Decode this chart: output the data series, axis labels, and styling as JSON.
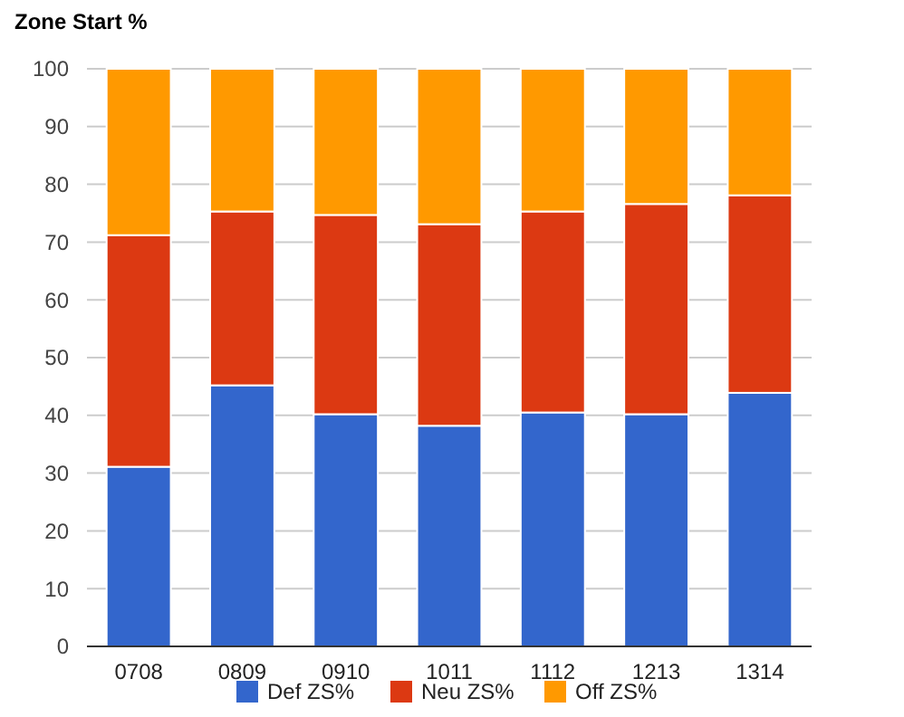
{
  "chart_data": {
    "type": "bar",
    "title": "Zone Start %",
    "stacked": true,
    "categories": [
      "0708",
      "0809",
      "0910",
      "1011",
      "1112",
      "1213",
      "1314"
    ],
    "series": [
      {
        "name": "Def ZS%",
        "color": "#3366cc",
        "values": [
          31.1,
          45.2,
          40.2,
          38.2,
          40.5,
          40.2,
          43.9
        ]
      },
      {
        "name": "Neu ZS%",
        "color": "#dc3912",
        "values": [
          40.1,
          30.1,
          34.5,
          34.9,
          34.8,
          36.4,
          34.2
        ]
      },
      {
        "name": "Off ZS%",
        "color": "#ff9900",
        "values": [
          28.8,
          24.7,
          25.3,
          26.9,
          24.7,
          23.4,
          21.9
        ]
      }
    ],
    "ylim": [
      0,
      100
    ],
    "yticks": [
      0,
      10,
      20,
      30,
      40,
      50,
      60,
      70,
      80,
      90,
      100
    ],
    "grid": "y",
    "legend": "bottom"
  }
}
